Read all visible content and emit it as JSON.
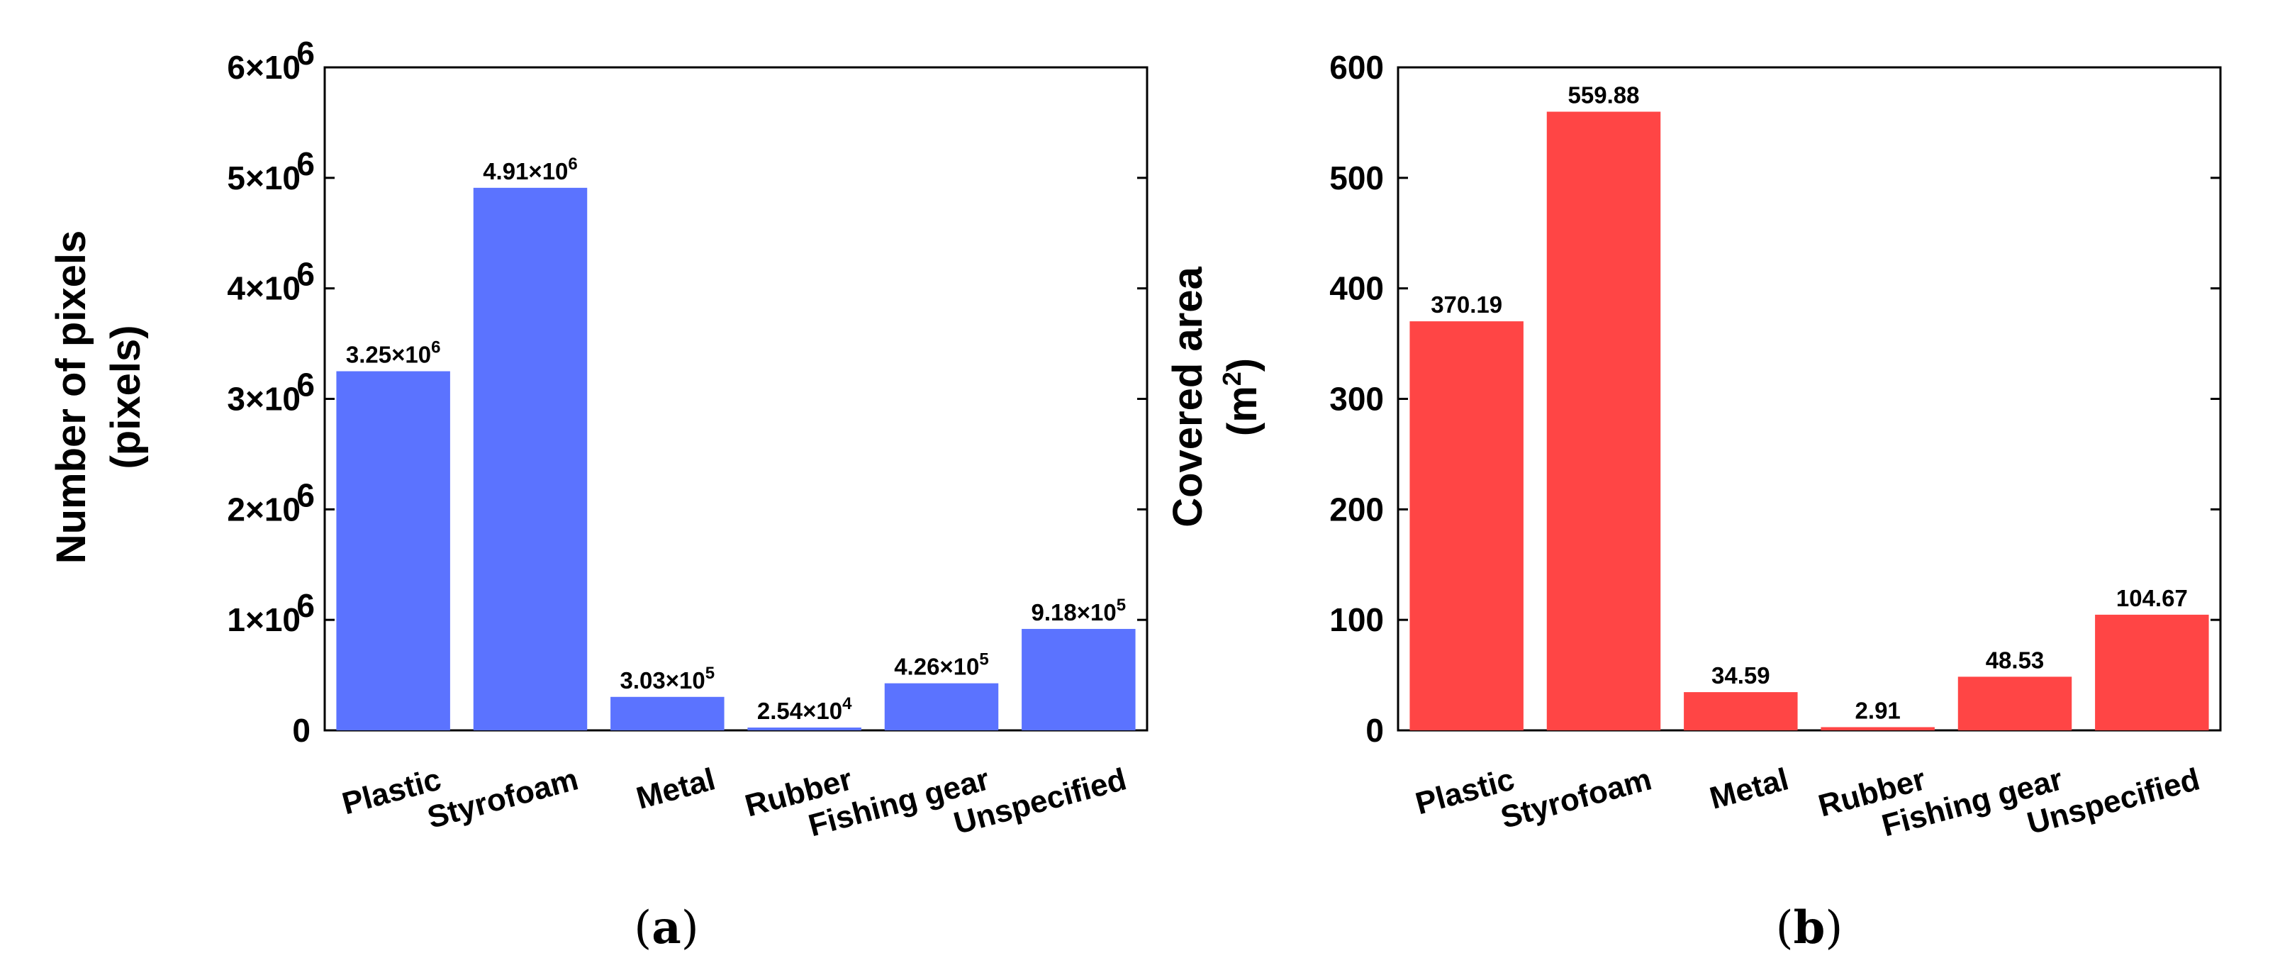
{
  "chart_data": [
    {
      "panel": "a",
      "type": "bar",
      "categories": [
        "Plastic",
        "Styrofoam",
        "Metal",
        "Rubber",
        "Fishing gear",
        "Unspecified"
      ],
      "values": [
        3250000,
        4910000,
        303000,
        25400,
        426000,
        918000
      ],
      "data_labels": [
        {
          "mantissa": "3.25×10",
          "exp": "6"
        },
        {
          "mantissa": "4.91×10",
          "exp": "6"
        },
        {
          "mantissa": "3.03×10",
          "exp": "5"
        },
        {
          "mantissa": "2.54×10",
          "exp": "4"
        },
        {
          "mantissa": "4.26×10",
          "exp": "5"
        },
        {
          "mantissa": "9.18×10",
          "exp": "5"
        }
      ],
      "ylabel_line1": "Number of pixels",
      "ylabel_line2": "(pixels)",
      "ylim": [
        0,
        6000000
      ],
      "yticks": [
        {
          "value": 0,
          "label": "0",
          "exp": ""
        },
        {
          "value": 1000000,
          "label": "1×10",
          "exp": "6"
        },
        {
          "value": 2000000,
          "label": "2×10",
          "exp": "6"
        },
        {
          "value": 3000000,
          "label": "3×10",
          "exp": "6"
        },
        {
          "value": 4000000,
          "label": "4×10",
          "exp": "6"
        },
        {
          "value": 5000000,
          "label": "5×10",
          "exp": "6"
        },
        {
          "value": 6000000,
          "label": "6×10",
          "exp": "6"
        }
      ],
      "color": "#5b73ff"
    },
    {
      "panel": "b",
      "type": "bar",
      "categories": [
        "Plastic",
        "Styrofoam",
        "Metal",
        "Rubber",
        "Fishing gear",
        "Unspecified"
      ],
      "values": [
        370.19,
        559.88,
        34.59,
        2.91,
        48.53,
        104.67
      ],
      "data_labels": [
        {
          "mantissa": "370.19",
          "exp": ""
        },
        {
          "mantissa": "559.88",
          "exp": ""
        },
        {
          "mantissa": "34.59",
          "exp": ""
        },
        {
          "mantissa": "2.91",
          "exp": ""
        },
        {
          "mantissa": "48.53",
          "exp": ""
        },
        {
          "mantissa": "104.67",
          "exp": ""
        }
      ],
      "ylabel_line1": "Covered area",
      "ylabel_line2_pre": "(m",
      "ylabel_line2_exp": "2",
      "ylabel_line2_post": ")",
      "ylim": [
        0,
        600
      ],
      "yticks": [
        {
          "value": 0,
          "label": "0",
          "exp": ""
        },
        {
          "value": 100,
          "label": "100",
          "exp": ""
        },
        {
          "value": 200,
          "label": "200",
          "exp": ""
        },
        {
          "value": 300,
          "label": "300",
          "exp": ""
        },
        {
          "value": 400,
          "label": "400",
          "exp": ""
        },
        {
          "value": 500,
          "label": "500",
          "exp": ""
        },
        {
          "value": 600,
          "label": "600",
          "exp": ""
        }
      ],
      "color": "#ff4545"
    }
  ],
  "captions": {
    "a": {
      "open": "(",
      "letter": "a",
      "close": ")"
    },
    "b": {
      "open": "(",
      "letter": "b",
      "close": ")"
    }
  }
}
